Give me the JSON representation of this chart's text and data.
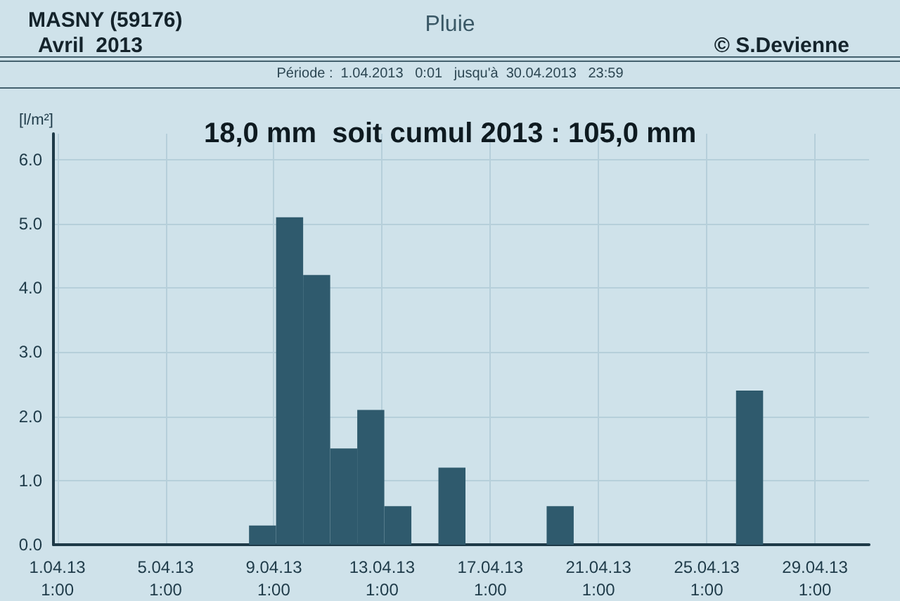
{
  "chart_data": {
    "type": "bar",
    "title": "Pluie",
    "subtitle": "Période :  1.04.2013   0:01   jusqu'à  30.04.2013   23:59",
    "annotations": [
      "MASNY (59176)",
      "Avril  2013",
      "© S.Devienne",
      "18,0 mm  soit cumul 2013 : 105,0 mm"
    ],
    "ylabel": "[l/m²]",
    "x": [
      "2013-04-08T15:00",
      "2013-04-09T15:00",
      "2013-04-10T15:00",
      "2013-04-11T15:00",
      "2013-04-12T15:00",
      "2013-04-13T15:00",
      "2013-04-15T15:00",
      "2013-04-19T15:00",
      "2013-04-26T15:00"
    ],
    "series": [
      {
        "color": "#2f5a6d",
        "values": [
          0.3,
          5.1,
          4.2,
          1.5,
          2.1,
          0.6,
          1.2,
          0.6,
          2.4
        ]
      }
    ],
    "xlim": [
      "2013-03-31T21:30",
      "2013-05-01T01:00"
    ],
    "xticks": [
      {
        "value": "2013-04-01T01:00",
        "label": "1.04.13\n1:00"
      },
      {
        "value": "2013-04-05T01:00",
        "label": "5.04.13\n1:00"
      },
      {
        "value": "2013-04-09T01:00",
        "label": "9.04.13\n1:00"
      },
      {
        "value": "2013-04-13T01:00",
        "label": "13.04.13\n1:00"
      },
      {
        "value": "2013-04-17T01:00",
        "label": "17.04.13\n1:00"
      },
      {
        "value": "2013-04-21T01:00",
        "label": "21.04.13\n1:00"
      },
      {
        "value": "2013-04-25T01:00",
        "label": "25.04.13\n1:00"
      },
      {
        "value": "2013-04-29T01:00",
        "label": "29.04.13\n1:00"
      }
    ],
    "ylim": [
      0,
      6.4
    ],
    "yticks": [
      {
        "value": 0,
        "label": "0.0"
      },
      {
        "value": 1,
        "label": "1.0"
      },
      {
        "value": 2,
        "label": "2.0"
      },
      {
        "value": 3,
        "label": "3.0"
      },
      {
        "value": 4,
        "label": "4.0"
      },
      {
        "value": 5,
        "label": "5.0"
      },
      {
        "value": 6,
        "label": "6.0"
      }
    ],
    "grid": true
  }
}
